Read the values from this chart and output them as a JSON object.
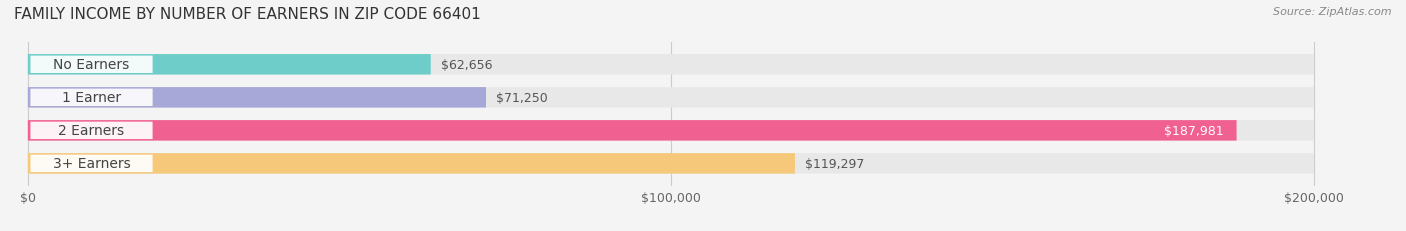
{
  "title": "FAMILY INCOME BY NUMBER OF EARNERS IN ZIP CODE 66401",
  "source": "Source: ZipAtlas.com",
  "categories": [
    "No Earners",
    "1 Earner",
    "2 Earners",
    "3+ Earners"
  ],
  "values": [
    62656,
    71250,
    187981,
    119297
  ],
  "bar_colors": [
    "#6ecdc8",
    "#a8a8d8",
    "#f06090",
    "#f5c87a"
  ],
  "label_colors": [
    "#6ecdc8",
    "#a8a8d8",
    "#f06090",
    "#f5c87a"
  ],
  "xlim": [
    0,
    200000
  ],
  "xticks": [
    0,
    100000,
    200000
  ],
  "xtick_labels": [
    "$0",
    "$100,000",
    "$200,000"
  ],
  "background_color": "#f4f4f4",
  "bar_background": "#e8e8e8",
  "title_fontsize": 11,
  "source_fontsize": 8,
  "value_fontsize": 9,
  "label_fontsize": 10
}
